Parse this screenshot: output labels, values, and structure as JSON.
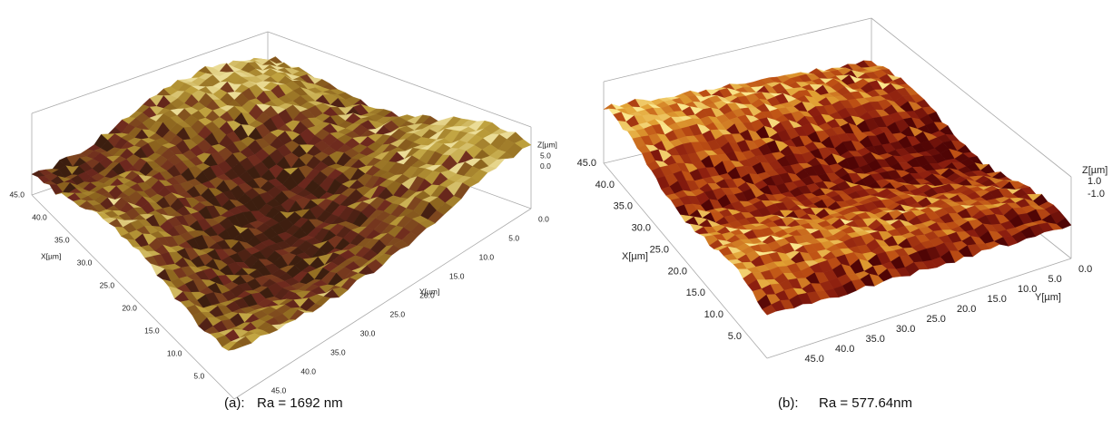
{
  "panels": [
    {
      "label": "(a):",
      "caption": "Ra = 1692 nm",
      "z_axis": {
        "title": "Z[µm]",
        "ticks": [
          "5.0",
          "0.0"
        ]
      },
      "x_axis": {
        "title": "X[µm]",
        "ticks": [
          "45.0",
          "40.0",
          "35.0",
          "30.0",
          "25.0",
          "20.0",
          "15.0",
          "10.0",
          "5.0"
        ]
      },
      "y_axis": {
        "title": "Y[µm]",
        "ticks": [
          "0.0",
          "5.0",
          "10.0",
          "15.0",
          "20.0",
          "25.0",
          "30.0",
          "35.0",
          "40.0",
          "45.0"
        ]
      }
    },
    {
      "label": "(b):",
      "caption": "Ra = 577.64nm",
      "z_axis": {
        "title": "Z[µm]",
        "ticks": [
          "1.0",
          "-1.0"
        ]
      },
      "x_axis": {
        "title": "X[µm]",
        "ticks": [
          "45.0",
          "40.0",
          "35.0",
          "30.0",
          "25.0",
          "20.0",
          "15.0",
          "10.0",
          "5.0"
        ]
      },
      "y_axis": {
        "title": "Y[µm]",
        "ticks": [
          "0.0",
          "5.0",
          "10.0",
          "15.0",
          "20.0",
          "25.0",
          "30.0",
          "35.0",
          "40.0",
          "45.0"
        ]
      }
    }
  ]
}
